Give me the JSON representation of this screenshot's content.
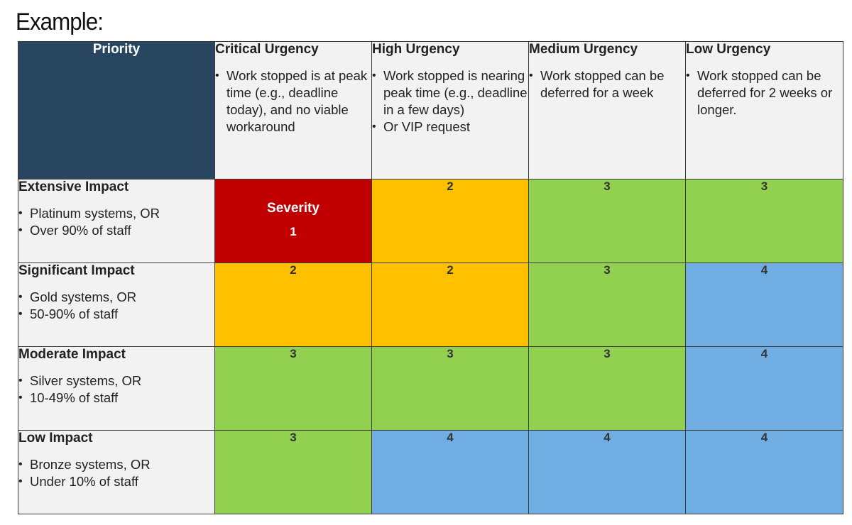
{
  "heading": "Example:",
  "matrix": {
    "corner_label": "Priority",
    "urgencies": [
      {
        "title": "Critical Urgency",
        "bullets": [
          "Work stopped is at peak time (e.g., deadline today), and no viable workaround"
        ]
      },
      {
        "title": "High Urgency",
        "bullets": [
          "Work stopped is nearing peak time (e.g., deadline in a few days)",
          "Or VIP request"
        ]
      },
      {
        "title": "Medium Urgency",
        "bullets": [
          "Work stopped can be deferred for a week"
        ]
      },
      {
        "title": "Low Urgency",
        "bullets": [
          "Work stopped can be deferred for 2 weeks or longer."
        ]
      }
    ],
    "impacts": [
      {
        "title": "Extensive Impact",
        "bullets": [
          "Platinum systems, OR",
          "Over 90% of staff"
        ]
      },
      {
        "title": "Significant Impact",
        "bullets": [
          "Gold systems, OR",
          "50-90% of staff"
        ]
      },
      {
        "title": "Moderate Impact",
        "bullets": [
          "Silver systems, OR",
          "10-49% of staff"
        ]
      },
      {
        "title": "Low Impact",
        "bullets": [
          "Bronze systems, OR",
          "Under 10% of staff"
        ]
      }
    ],
    "severity_label": "Severity",
    "severity": [
      [
        "1",
        "2",
        "3",
        "3"
      ],
      [
        "2",
        "2",
        "3",
        "4"
      ],
      [
        "3",
        "3",
        "3",
        "4"
      ],
      [
        "3",
        "4",
        "4",
        "4"
      ]
    ],
    "severity_colors": {
      "1": "#c00000",
      "2": "#ffc000",
      "3": "#92d050",
      "4": "#6fade3"
    },
    "header_bg": "#284660",
    "label_bg": "#f2f2f2"
  }
}
